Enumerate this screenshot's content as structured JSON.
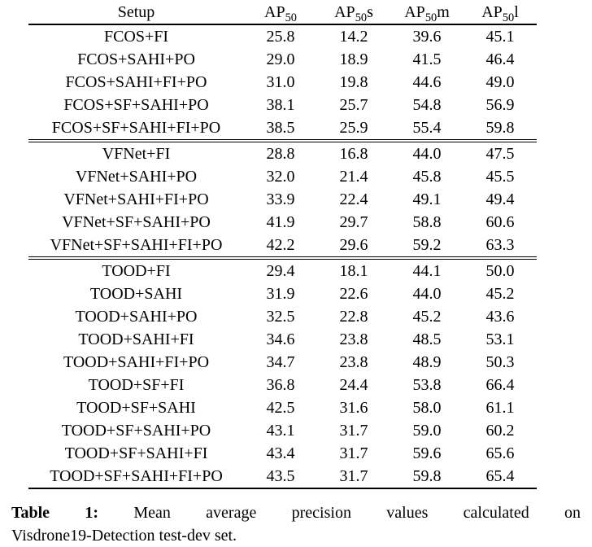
{
  "colors": {
    "background": "#ffffff",
    "text": "#000000"
  },
  "table": {
    "headers": [
      {
        "text": "Setup",
        "sub": "",
        "suffix": ""
      },
      {
        "text": "AP",
        "sub": "50",
        "suffix": ""
      },
      {
        "text": "AP",
        "sub": "50",
        "suffix": "s"
      },
      {
        "text": "AP",
        "sub": "50",
        "suffix": "m"
      },
      {
        "text": "AP",
        "sub": "50",
        "suffix": "l"
      }
    ],
    "groups": [
      {
        "rows": [
          {
            "setup": "FCOS+FI",
            "values": [
              "25.8",
              "14.2",
              "39.6",
              "45.1"
            ],
            "bold": [
              false,
              false,
              false,
              false
            ]
          },
          {
            "setup": "FCOS+SAHI+PO",
            "values": [
              "29.0",
              "18.9",
              "41.5",
              "46.4"
            ],
            "bold": [
              false,
              false,
              false,
              false
            ]
          },
          {
            "setup": "FCOS+SAHI+FI+PO",
            "values": [
              "31.0",
              "19.8",
              "44.6",
              "49.0"
            ],
            "bold": [
              false,
              false,
              false,
              false
            ]
          },
          {
            "setup": "FCOS+SF+SAHI+PO",
            "values": [
              "38.1",
              "25.7",
              "54.8",
              "56.9"
            ],
            "bold": [
              false,
              false,
              false,
              false
            ]
          },
          {
            "setup": "FCOS+SF+SAHI+FI+PO",
            "values": [
              "38.5",
              "25.9",
              "55.4",
              "59.8"
            ],
            "bold": [
              true,
              true,
              true,
              true
            ]
          }
        ]
      },
      {
        "rows": [
          {
            "setup": "VFNet+FI",
            "values": [
              "28.8",
              "16.8",
              "44.0",
              "47.5"
            ],
            "bold": [
              false,
              false,
              false,
              false
            ]
          },
          {
            "setup": "VFNet+SAHI+PO",
            "values": [
              "32.0",
              "21.4",
              "45.8",
              "45.5"
            ],
            "bold": [
              false,
              false,
              false,
              false
            ]
          },
          {
            "setup": "VFNet+SAHI+FI+PO",
            "values": [
              "33.9",
              "22.4",
              "49.1",
              "49.4"
            ],
            "bold": [
              false,
              false,
              false,
              false
            ]
          },
          {
            "setup": "VFNet+SF+SAHI+PO",
            "values": [
              "41.9",
              "29.7",
              "58.8",
              "60.6"
            ],
            "bold": [
              false,
              true,
              false,
              false
            ]
          },
          {
            "setup": "VFNet+SF+SAHI+FI+PO",
            "values": [
              "42.2",
              "29.6",
              "59.2",
              "63.3"
            ],
            "bold": [
              true,
              true,
              true,
              true
            ]
          }
        ]
      },
      {
        "rows": [
          {
            "setup": "TOOD+FI",
            "values": [
              "29.4",
              "18.1",
              "44.1",
              "50.0"
            ],
            "bold": [
              false,
              false,
              false,
              false
            ]
          },
          {
            "setup": "TOOD+SAHI",
            "values": [
              "31.9",
              "22.6",
              "44.0",
              "45.2"
            ],
            "bold": [
              false,
              false,
              false,
              false
            ]
          },
          {
            "setup": "TOOD+SAHI+PO",
            "values": [
              "32.5",
              "22.8",
              "45.2",
              "43.6"
            ],
            "bold": [
              false,
              false,
              false,
              false
            ]
          },
          {
            "setup": "TOOD+SAHI+FI",
            "values": [
              "34.6",
              "23.8",
              "48.5",
              "53.1"
            ],
            "bold": [
              false,
              false,
              false,
              false
            ]
          },
          {
            "setup": "TOOD+SAHI+FI+PO",
            "values": [
              "34.7",
              "23.8",
              "48.9",
              "50.3"
            ],
            "bold": [
              false,
              false,
              false,
              false
            ]
          },
          {
            "setup": "TOOD+SF+FI",
            "values": [
              "36.8",
              "24.4",
              "53.8",
              "66.4"
            ],
            "bold": [
              false,
              false,
              false,
              true
            ]
          },
          {
            "setup": "TOOD+SF+SAHI",
            "values": [
              "42.5",
              "31.6",
              "58.0",
              "61.1"
            ],
            "bold": [
              false,
              false,
              false,
              false
            ]
          },
          {
            "setup": "TOOD+SF+SAHI+PO",
            "values": [
              "43.1",
              "31.7",
              "59.0",
              "60.2"
            ],
            "bold": [
              false,
              true,
              false,
              false
            ]
          },
          {
            "setup": "TOOD+SF+SAHI+FI",
            "values": [
              "43.4",
              "31.7",
              "59.6",
              "65.6"
            ],
            "bold": [
              false,
              true,
              false,
              false
            ]
          },
          {
            "setup": "TOOD+SF+SAHI+FI+PO",
            "values": [
              "43.5",
              "31.7",
              "59.8",
              "65.4"
            ],
            "bold": [
              true,
              true,
              true,
              false
            ]
          }
        ]
      }
    ]
  },
  "caption": {
    "label": "Table 1:",
    "line1_rest": "Mean average precision values calculated on",
    "line2": "Visdrone19-Detection test-dev set.",
    "full_text": "Table 1: Mean average precision values calculated on Visdrone19-Detection test-dev set."
  }
}
